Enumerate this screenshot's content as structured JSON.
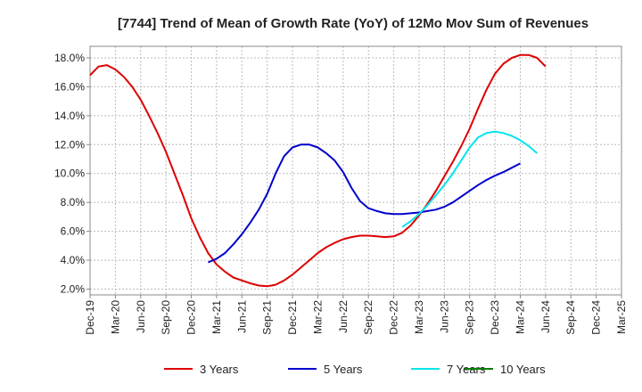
{
  "chart_data": {
    "type": "line",
    "title": "[7744]  Trend of Mean of Growth Rate (YoY) of 12Mo Mov Sum of Revenues",
    "xlabel": "",
    "ylabel": "",
    "x_ticks": [
      "Dec-19",
      "Mar-20",
      "Jun-20",
      "Sep-20",
      "Dec-20",
      "Mar-21",
      "Jun-21",
      "Sep-21",
      "Dec-21",
      "Mar-22",
      "Jun-22",
      "Sep-22",
      "Dec-22",
      "Mar-23",
      "Jun-23",
      "Sep-23",
      "Dec-23",
      "Mar-24",
      "Jun-24",
      "Sep-24",
      "Dec-24",
      "Mar-25"
    ],
    "y_ticks": [
      "2.0%",
      "4.0%",
      "6.0%",
      "8.0%",
      "10.0%",
      "12.0%",
      "14.0%",
      "16.0%",
      "18.0%"
    ],
    "ylim": [
      1.6,
      18.8
    ],
    "grid": true,
    "legend_position": "bottom",
    "series": [
      {
        "name": "3 Years",
        "color": "#dd0000",
        "start_index": 0,
        "values": [
          16.8,
          17.4,
          17.5,
          17.2,
          16.7,
          16.0,
          15.1,
          14.0,
          12.8,
          11.5,
          10.0,
          8.5,
          6.9,
          5.6,
          4.5,
          3.7,
          3.2,
          2.8,
          2.6,
          2.4,
          2.25,
          2.2,
          2.3,
          2.6,
          3.0,
          3.5,
          4.0,
          4.5,
          4.9,
          5.2,
          5.45,
          5.6,
          5.7,
          5.7,
          5.65,
          5.6,
          5.65,
          5.9,
          6.4,
          7.1,
          7.9,
          8.8,
          9.8,
          10.8,
          11.9,
          13.1,
          14.5,
          15.8,
          16.9,
          17.6,
          18.0,
          18.2,
          18.2,
          18.0,
          17.4
        ]
      },
      {
        "name": "5 Years",
        "color": "#0000cc",
        "start_index": 14,
        "values": [
          3.85,
          4.1,
          4.5,
          5.1,
          5.8,
          6.6,
          7.5,
          8.6,
          10.0,
          11.2,
          11.8,
          12.0,
          12.0,
          11.8,
          11.4,
          10.9,
          10.1,
          9.0,
          8.1,
          7.6,
          7.4,
          7.25,
          7.2,
          7.2,
          7.25,
          7.3,
          7.4,
          7.5,
          7.7,
          8.0,
          8.4,
          8.8,
          9.2,
          9.55,
          9.85,
          10.1,
          10.4,
          10.7
        ]
      },
      {
        "name": "7 Years",
        "color": "#00e5ee",
        "start_index": 37,
        "values": [
          6.3,
          6.7,
          7.2,
          7.8,
          8.5,
          9.2,
          10.0,
          10.9,
          11.8,
          12.5,
          12.8,
          12.9,
          12.8,
          12.6,
          12.3,
          11.9,
          11.4
        ]
      },
      {
        "name": "10 Years",
        "color": "#008000",
        "start_index": 0,
        "values": []
      }
    ],
    "points_per_quarter": 3
  }
}
